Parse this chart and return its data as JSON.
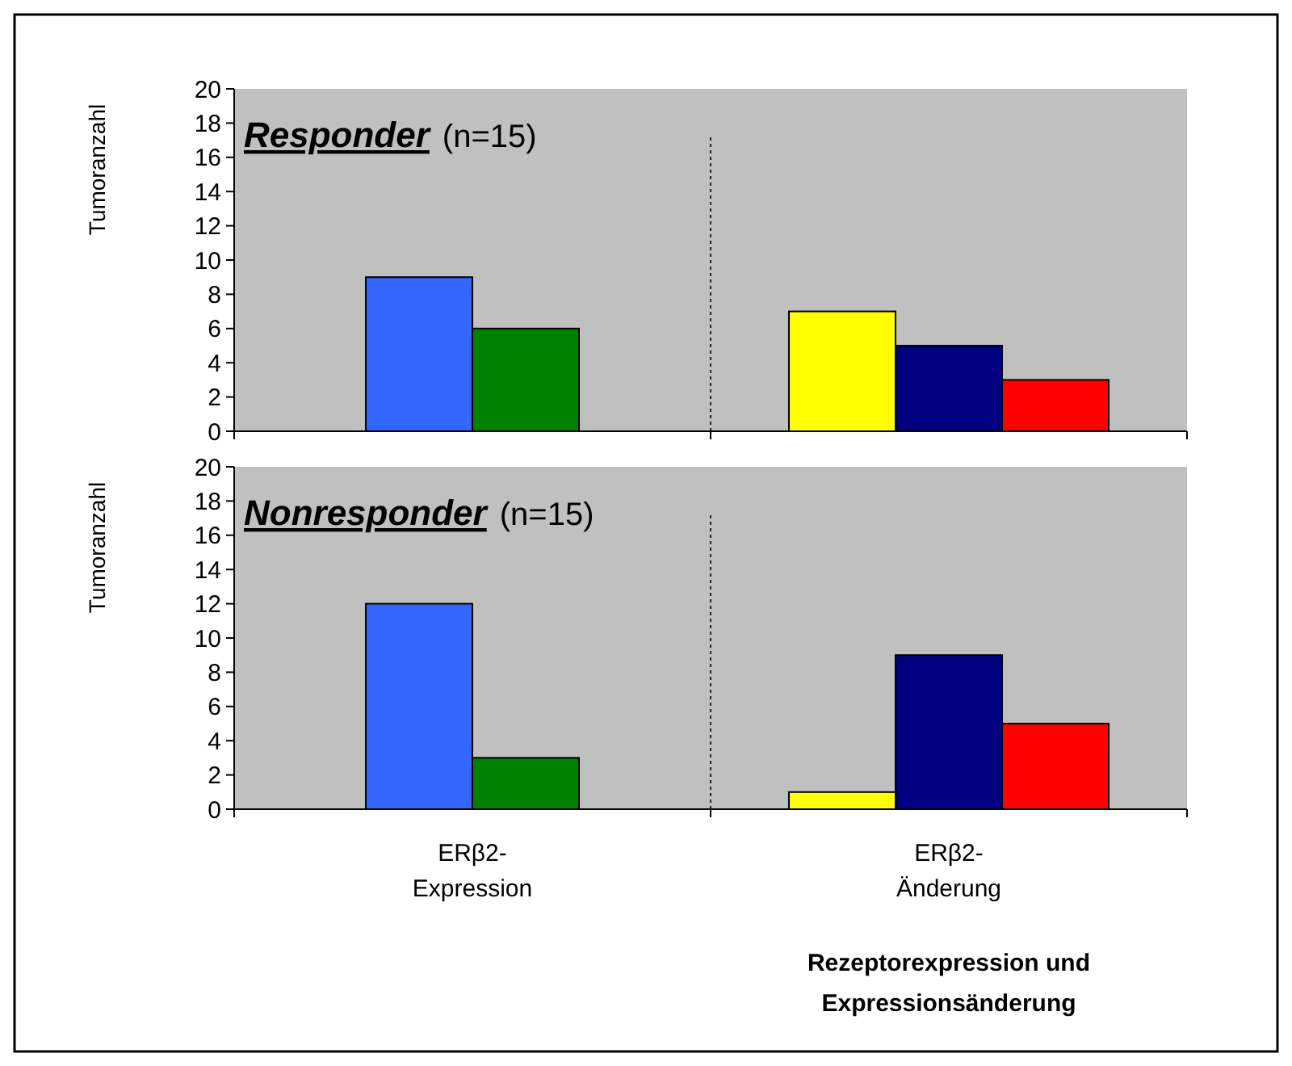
{
  "chart_data": [
    {
      "type": "bar",
      "title": "Responder",
      "subtitle": "(n=15)",
      "ylabel": "Tumoranzahl",
      "categories": [
        null,
        null
      ],
      "ylim": [
        0,
        20
      ],
      "yticks": [
        0,
        2,
        4,
        6,
        8,
        10,
        12,
        14,
        16,
        18,
        20
      ],
      "tick_labels": "y",
      "grid": false,
      "series": [
        {
          "color": "#3366ff",
          "values": [
            9,
            null
          ]
        },
        {
          "color": "#008000",
          "values": [
            6,
            null
          ]
        },
        {
          "color": "#ffff00",
          "values": [
            null,
            7
          ]
        },
        {
          "color": "#000080",
          "values": [
            null,
            5
          ]
        },
        {
          "color": "#ff0000",
          "values": [
            null,
            3
          ]
        }
      ]
    },
    {
      "type": "bar",
      "title": "Nonresponder",
      "subtitle": "(n=15)",
      "ylabel": "Tumoranzahl",
      "xlabel": "Rezeptorexpression und\nExpressionsänderung",
      "categories": [
        "ERβ2-\nExpression",
        "ERβ2-\nÄnderung"
      ],
      "ylim": [
        0,
        20
      ],
      "yticks": [
        0,
        2,
        4,
        6,
        8,
        10,
        12,
        14,
        16,
        18,
        20
      ],
      "grid": false,
      "series": [
        {
          "color": "#3366ff",
          "values": [
            12,
            null
          ]
        },
        {
          "color": "#008000",
          "values": [
            3,
            null
          ]
        },
        {
          "color": "#ffff00",
          "values": [
            null,
            1
          ]
        },
        {
          "color": "#000080",
          "values": [
            null,
            9
          ]
        },
        {
          "color": "#ff0000",
          "values": [
            null,
            5
          ]
        }
      ]
    }
  ]
}
